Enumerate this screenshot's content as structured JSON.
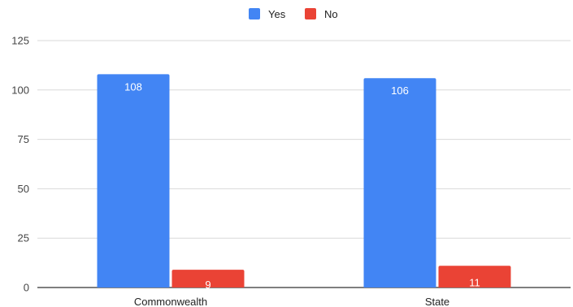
{
  "chart_data": {
    "type": "bar",
    "categories": [
      "Commonwealth",
      "State"
    ],
    "series": [
      {
        "name": "Yes",
        "values": [
          108,
          106
        ],
        "color": "#4285f4"
      },
      {
        "name": "No",
        "values": [
          9,
          11
        ],
        "color": "#ea4335"
      }
    ],
    "y_ticks": [
      0,
      25,
      50,
      75,
      100,
      125
    ],
    "ylim": [
      0,
      125
    ],
    "grid": true,
    "legend_position": "top-center"
  }
}
